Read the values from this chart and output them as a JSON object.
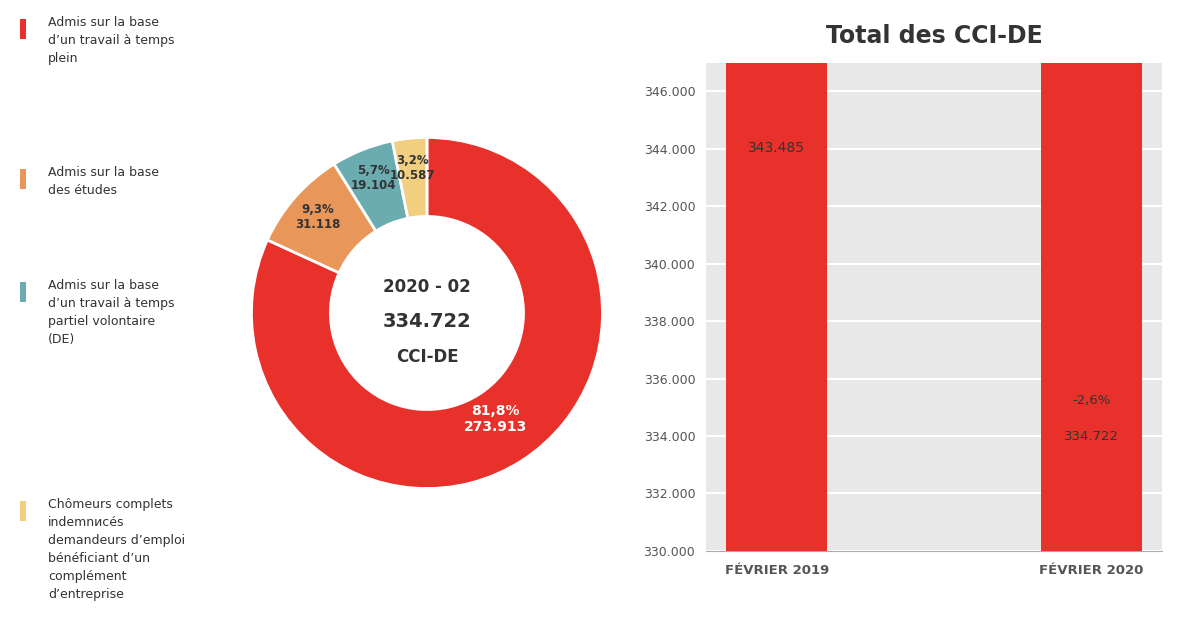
{
  "donut": {
    "values": [
      273913,
      31118,
      19104,
      10587
    ],
    "percentages": [
      "81,8%",
      "9,3%",
      "5,7%",
      "3,2%"
    ],
    "labels_val": [
      "273.913",
      "31.118",
      "19.104",
      "10.587"
    ],
    "colors": [
      "#E8312A",
      "#E8965A",
      "#6AACB0",
      "#F0D080"
    ],
    "center_line1": "2020 - 02",
    "center_line2": "334.722",
    "center_line3": "CCI-DE"
  },
  "legend": [
    {
      "color": "#E8312A",
      "text": "Admis sur la base\nd’un travail à temps\nplein"
    },
    {
      "color": "#E8965A",
      "text": "Admis sur la base\ndes études"
    },
    {
      "color": "#6AACB0",
      "text": "Admis sur la base\nd’un travail à temps\npartiel volontaire\n(DE)"
    },
    {
      "color": "#F0D080",
      "text": "Chômeurs complets\nindemnисés\ndemandeurs d’emploi\nbénéficiant d’un\ncomplément\nd’entreprise"
    }
  ],
  "bar": {
    "categories": [
      "FÉVRIER 2019",
      "FÉVRIER 2020"
    ],
    "values": [
      343485,
      334722
    ],
    "labels": [
      "343.485",
      "334.722"
    ],
    "color": "#E8312A",
    "title": "Total des CCI-DE",
    "ylim": [
      330000,
      347000
    ],
    "yticks": [
      330000,
      332000,
      334000,
      336000,
      338000,
      340000,
      342000,
      344000,
      346000
    ],
    "ytick_labels": [
      "330.000",
      "332.000",
      "334.000",
      "336.000",
      "338.000",
      "340.000",
      "342.000",
      "344.000",
      "346.000"
    ]
  }
}
